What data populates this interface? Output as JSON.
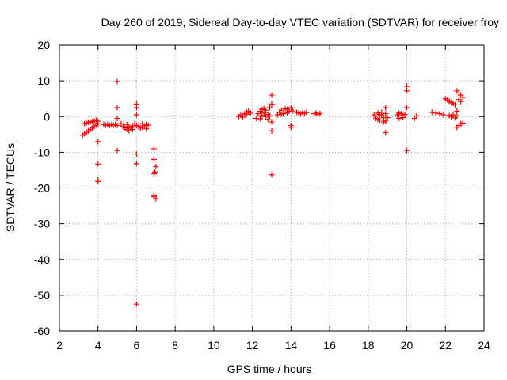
{
  "chart_data": {
    "type": "scatter",
    "title": "Day 260 of 2019, Sidereal Day-to-day VTEC variation (SDTVAR) for receiver froy",
    "xlabel": "GPS time / hours",
    "ylabel": "SDTVAR / TECUs",
    "xlim": [
      2,
      24
    ],
    "ylim": [
      -60,
      20
    ],
    "xticks": [
      2,
      4,
      6,
      8,
      10,
      12,
      14,
      16,
      18,
      20,
      22,
      24
    ],
    "yticks": [
      20,
      10,
      0,
      -10,
      -20,
      -30,
      -40,
      -50,
      -60
    ],
    "grid": true,
    "marker": "plus",
    "color": "#ff0000",
    "series": [
      {
        "name": "SDTVAR",
        "points": [
          [
            3.2,
            -5.2
          ],
          [
            3.3,
            -4.8
          ],
          [
            3.4,
            -4.4
          ],
          [
            3.5,
            -4.0
          ],
          [
            3.6,
            -3.6
          ],
          [
            3.7,
            -3.2
          ],
          [
            3.8,
            -2.8
          ],
          [
            3.9,
            -2.4
          ],
          [
            4.0,
            -2.0
          ],
          [
            3.3,
            -2.0
          ],
          [
            3.4,
            -1.8
          ],
          [
            3.5,
            -1.6
          ],
          [
            3.6,
            -1.5
          ],
          [
            3.7,
            -1.4
          ],
          [
            3.8,
            -1.2
          ],
          [
            3.9,
            -1.0
          ],
          [
            4.0,
            -1.3
          ],
          [
            4.0,
            -7.0
          ],
          [
            4.0,
            -13.3
          ],
          [
            4.0,
            -17.8
          ],
          [
            4.0,
            -18.2
          ],
          [
            4.3,
            -2.2
          ],
          [
            4.4,
            -2.4
          ],
          [
            4.5,
            -2.2
          ],
          [
            4.6,
            -2.5
          ],
          [
            4.7,
            -2.3
          ],
          [
            4.8,
            -2.4
          ],
          [
            4.9,
            -2.2
          ],
          [
            5.0,
            9.8
          ],
          [
            5.0,
            2.5
          ],
          [
            5.0,
            -0.5
          ],
          [
            5.0,
            -9.5
          ],
          [
            5.0,
            -2.5
          ],
          [
            5.2,
            -2.0
          ],
          [
            5.3,
            -2.8
          ],
          [
            5.4,
            -3.2
          ],
          [
            5.5,
            -3.6
          ],
          [
            5.6,
            -4.0
          ],
          [
            5.7,
            -3.2
          ],
          [
            5.8,
            -2.6
          ],
          [
            5.9,
            -2.0
          ],
          [
            5.8,
            -3.6
          ],
          [
            5.5,
            -2.2
          ],
          [
            5.6,
            -2.8
          ],
          [
            6.0,
            3.5
          ],
          [
            6.0,
            2.5
          ],
          [
            6.0,
            0.5
          ],
          [
            6.0,
            -2.5
          ],
          [
            6.0,
            -10.5
          ],
          [
            6.0,
            -13.2
          ],
          [
            6.0,
            -52.5
          ],
          [
            6.1,
            -2.8
          ],
          [
            6.2,
            -3.2
          ],
          [
            6.3,
            -3.0
          ],
          [
            6.4,
            -2.6
          ],
          [
            6.5,
            -2.2
          ],
          [
            6.6,
            -2.4
          ],
          [
            6.3,
            -2.0
          ],
          [
            6.5,
            -3.4
          ],
          [
            6.9,
            -9.0
          ],
          [
            6.9,
            -12.0
          ],
          [
            7.0,
            -14.0
          ],
          [
            6.95,
            -15.5
          ],
          [
            6.9,
            -16.0
          ],
          [
            6.9,
            -22.0
          ],
          [
            7.0,
            -23.0
          ],
          [
            6.9,
            -22.5
          ],
          [
            11.3,
            0.0
          ],
          [
            11.4,
            0.5
          ],
          [
            11.5,
            -0.2
          ],
          [
            11.6,
            0.8
          ],
          [
            11.7,
            1.2
          ],
          [
            11.8,
            1.5
          ],
          [
            11.9,
            1.0
          ],
          [
            11.7,
            0.6
          ],
          [
            12.2,
            -0.5
          ],
          [
            12.3,
            0.8
          ],
          [
            12.4,
            1.5
          ],
          [
            12.5,
            2.0
          ],
          [
            12.6,
            1.0
          ],
          [
            12.7,
            0.0
          ],
          [
            12.8,
            -0.8
          ],
          [
            12.9,
            2.5
          ],
          [
            12.5,
            0.3
          ],
          [
            12.6,
            2.3
          ],
          [
            12.7,
            1.8
          ],
          [
            12.8,
            0.6
          ],
          [
            12.4,
            -0.6
          ],
          [
            12.9,
            0.2
          ],
          [
            13.0,
            6.0
          ],
          [
            13.0,
            3.5
          ],
          [
            13.0,
            -1.5
          ],
          [
            13.0,
            -4.0
          ],
          [
            13.0,
            -16.3
          ],
          [
            13.3,
            0.5
          ],
          [
            13.4,
            1.2
          ],
          [
            13.5,
            1.8
          ],
          [
            13.6,
            0.8
          ],
          [
            13.7,
            2.2
          ],
          [
            13.8,
            1.0
          ],
          [
            13.9,
            1.5
          ],
          [
            14.0,
            2.5
          ],
          [
            14.1,
            1.6
          ],
          [
            13.5,
            0.6
          ],
          [
            13.8,
            2.0
          ],
          [
            14.0,
            -2.5
          ],
          [
            14.0,
            -3.0
          ],
          [
            14.3,
            1.2
          ],
          [
            14.4,
            1.0
          ],
          [
            14.5,
            0.8
          ],
          [
            14.6,
            1.2
          ],
          [
            14.7,
            0.9
          ],
          [
            14.8,
            1.1
          ],
          [
            15.2,
            0.8
          ],
          [
            15.3,
            1.0
          ],
          [
            15.4,
            0.6
          ],
          [
            15.5,
            0.9
          ],
          [
            18.3,
            0.5
          ],
          [
            18.4,
            -0.5
          ],
          [
            18.5,
            1.0
          ],
          [
            18.6,
            -1.0
          ],
          [
            18.7,
            0.2
          ],
          [
            18.8,
            -1.5
          ],
          [
            18.9,
            0.8
          ],
          [
            19.0,
            -0.3
          ],
          [
            18.5,
            -0.8
          ],
          [
            18.7,
            1.2
          ],
          [
            18.9,
            -1.2
          ],
          [
            18.6,
            0.6
          ],
          [
            18.8,
            -0.2
          ],
          [
            18.9,
            2.5
          ],
          [
            18.9,
            -4.5
          ],
          [
            19.5,
            0.5
          ],
          [
            19.6,
            -0.5
          ],
          [
            19.7,
            0.8
          ],
          [
            19.8,
            0.2
          ],
          [
            19.9,
            0.6
          ],
          [
            19.6,
            1.0
          ],
          [
            19.8,
            -0.3
          ],
          [
            20.0,
            8.5
          ],
          [
            20.0,
            7.2
          ],
          [
            20.0,
            2.5
          ],
          [
            20.0,
            -9.5
          ],
          [
            20.4,
            -0.5
          ],
          [
            20.5,
            0.2
          ],
          [
            21.3,
            1.2
          ],
          [
            21.5,
            1.0
          ],
          [
            21.7,
            0.8
          ],
          [
            21.9,
            0.5
          ],
          [
            22.0,
            5.0
          ],
          [
            22.1,
            4.7
          ],
          [
            22.2,
            4.3
          ],
          [
            22.3,
            4.0
          ],
          [
            22.4,
            3.7
          ],
          [
            22.5,
            3.3
          ],
          [
            22.2,
            0.3
          ],
          [
            22.3,
            0.0
          ],
          [
            22.4,
            0.5
          ],
          [
            22.5,
            -0.4
          ],
          [
            22.6,
            0.2
          ],
          [
            22.6,
            7.2
          ],
          [
            22.7,
            6.6
          ],
          [
            22.8,
            6.0
          ],
          [
            22.9,
            5.4
          ],
          [
            22.7,
            4.8
          ],
          [
            22.8,
            4.2
          ],
          [
            22.6,
            1.5
          ],
          [
            22.6,
            -3.0
          ],
          [
            22.7,
            -2.5
          ],
          [
            22.8,
            -2.0
          ],
          [
            22.9,
            -1.8
          ]
        ]
      }
    ]
  }
}
